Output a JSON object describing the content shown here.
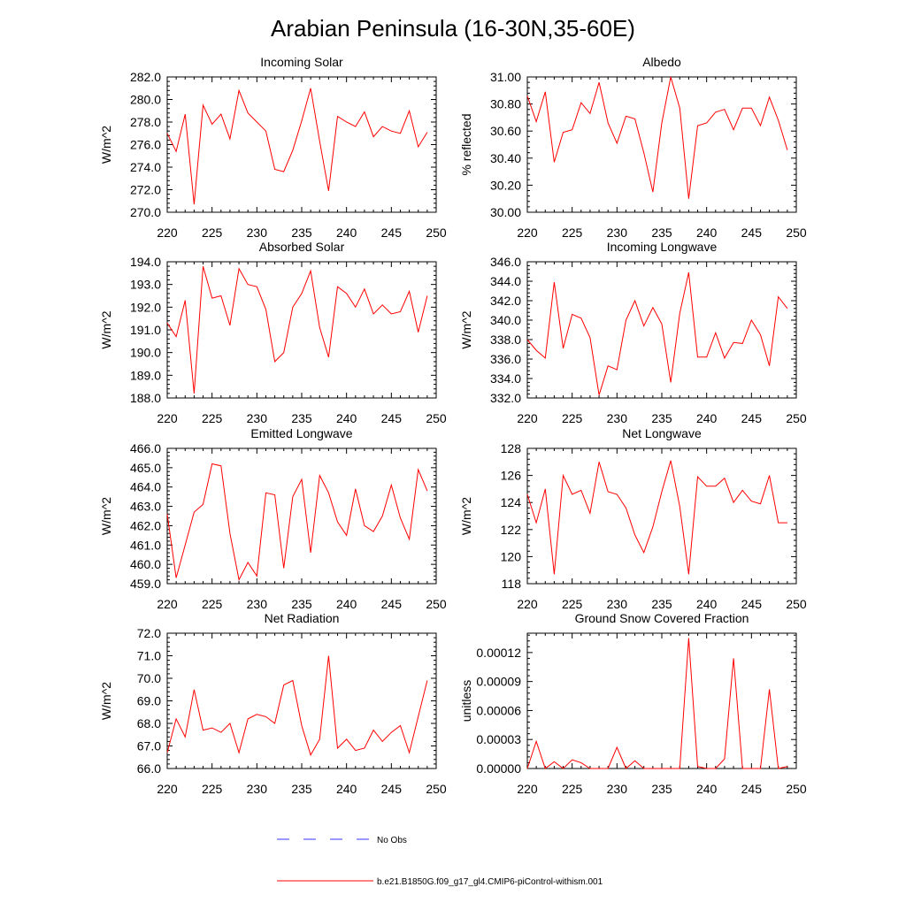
{
  "title": "Arabian Peninsula (16-30N,35-60E)",
  "legend": {
    "obs_label": "No Obs",
    "model_label": "b.e21.B1850G.f09_g17_gl4.CMIP6-piControl-withism.001",
    "obs_color": "#0000ff",
    "model_color": "#ff0000"
  },
  "chart_data": [
    {
      "type": "line",
      "title": "Incoming Solar",
      "xlabel": "",
      "ylabel": "W/m^2",
      "xlim": [
        220,
        250
      ],
      "ylim": [
        270,
        282
      ],
      "xticks": [
        220,
        225,
        230,
        235,
        240,
        245,
        250
      ],
      "yticks": [
        "270.0",
        "272.0",
        "274.0",
        "276.0",
        "278.0",
        "280.0",
        "282.0"
      ],
      "series": [
        {
          "x": [
            220,
            221,
            222,
            223,
            224,
            225,
            226,
            227,
            228,
            229,
            230,
            231,
            232,
            233,
            234,
            235,
            236,
            237,
            238,
            239,
            240,
            241,
            242,
            243,
            244,
            245,
            246,
            247,
            248,
            249
          ],
          "values": [
            277.0,
            275.4,
            278.7,
            270.7,
            279.5,
            277.8,
            278.7,
            276.5,
            280.8,
            278.8,
            278.0,
            277.2,
            273.8,
            273.6,
            275.5,
            278.1,
            281.0,
            276.3,
            271.9,
            278.5,
            278.0,
            277.6,
            278.9,
            276.7,
            277.6,
            277.2,
            277.0,
            279.0,
            275.8,
            277.1
          ]
        }
      ]
    },
    {
      "type": "line",
      "title": "Albedo",
      "xlabel": "",
      "ylabel": "% reflected",
      "xlim": [
        220,
        250
      ],
      "ylim": [
        30.0,
        31.0
      ],
      "xticks": [
        220,
        225,
        230,
        235,
        240,
        245,
        250
      ],
      "yticks": [
        "30.00",
        "30.20",
        "30.40",
        "30.60",
        "30.80",
        "31.00"
      ],
      "series": [
        {
          "x": [
            220,
            221,
            222,
            223,
            224,
            225,
            226,
            227,
            228,
            229,
            230,
            231,
            232,
            233,
            234,
            235,
            236,
            237,
            238,
            239,
            240,
            241,
            242,
            243,
            244,
            245,
            246,
            247,
            248,
            249
          ],
          "values": [
            30.86,
            30.67,
            30.89,
            30.37,
            30.59,
            30.61,
            30.81,
            30.73,
            30.96,
            30.66,
            30.51,
            30.71,
            30.69,
            30.44,
            30.15,
            30.66,
            31.0,
            30.77,
            30.1,
            30.64,
            30.66,
            30.74,
            30.76,
            30.61,
            30.77,
            30.77,
            30.64,
            30.85,
            30.68,
            30.46
          ]
        }
      ]
    },
    {
      "type": "line",
      "title": "Absorbed Solar",
      "xlabel": "",
      "ylabel": "W/m^2",
      "xlim": [
        220,
        250
      ],
      "ylim": [
        188,
        194
      ],
      "xticks": [
        220,
        225,
        230,
        235,
        240,
        245,
        250
      ],
      "yticks": [
        "188.0",
        "189.0",
        "190.0",
        "191.0",
        "192.0",
        "193.0",
        "194.0"
      ],
      "series": [
        {
          "x": [
            220,
            221,
            222,
            223,
            224,
            225,
            226,
            227,
            228,
            229,
            230,
            231,
            232,
            233,
            234,
            235,
            236,
            237,
            238,
            239,
            240,
            241,
            242,
            243,
            244,
            245,
            246,
            247,
            248,
            249
          ],
          "values": [
            191.3,
            190.7,
            192.3,
            188.2,
            193.8,
            192.4,
            192.5,
            191.2,
            193.7,
            193.0,
            192.9,
            191.9,
            189.6,
            190.0,
            192.0,
            192.6,
            193.6,
            191.1,
            189.8,
            192.9,
            192.6,
            192.0,
            192.8,
            191.7,
            192.1,
            191.7,
            191.8,
            192.7,
            190.9,
            192.5
          ]
        }
      ]
    },
    {
      "type": "line",
      "title": "Incoming Longwave",
      "xlabel": "",
      "ylabel": "W/m^2",
      "xlim": [
        220,
        250
      ],
      "ylim": [
        332,
        346
      ],
      "xticks": [
        220,
        225,
        230,
        235,
        240,
        245,
        250
      ],
      "yticks": [
        "332.0",
        "334.0",
        "336.0",
        "338.0",
        "340.0",
        "342.0",
        "344.0",
        "346.0"
      ],
      "series": [
        {
          "x": [
            220,
            221,
            222,
            223,
            224,
            225,
            226,
            227,
            228,
            229,
            230,
            231,
            232,
            233,
            234,
            235,
            236,
            237,
            238,
            239,
            240,
            241,
            242,
            243,
            244,
            245,
            246,
            247,
            248,
            249
          ],
          "values": [
            338.0,
            336.9,
            336.1,
            343.9,
            337.1,
            340.6,
            340.2,
            338.2,
            332.3,
            335.3,
            334.9,
            340.0,
            342.0,
            339.4,
            341.3,
            339.6,
            333.6,
            340.7,
            344.9,
            336.2,
            336.2,
            338.7,
            336.1,
            337.7,
            337.6,
            340.0,
            338.5,
            335.3,
            342.4,
            341.2
          ]
        }
      ]
    },
    {
      "type": "line",
      "title": "Emitted Longwave",
      "xlabel": "",
      "ylabel": "W/m^2",
      "xlim": [
        220,
        250
      ],
      "ylim": [
        459,
        466
      ],
      "xticks": [
        220,
        225,
        230,
        235,
        240,
        245,
        250
      ],
      "yticks": [
        "459.0",
        "460.0",
        "461.0",
        "462.0",
        "463.0",
        "464.0",
        "465.0",
        "466.0"
      ],
      "series": [
        {
          "x": [
            220,
            221,
            222,
            223,
            224,
            225,
            226,
            227,
            228,
            229,
            230,
            231,
            232,
            233,
            234,
            235,
            236,
            237,
            238,
            239,
            240,
            241,
            242,
            243,
            244,
            245,
            246,
            247,
            248,
            249
          ],
          "values": [
            462.6,
            459.3,
            461.0,
            462.7,
            463.1,
            465.2,
            465.1,
            461.6,
            459.2,
            460.1,
            459.4,
            463.7,
            463.6,
            459.8,
            463.5,
            464.4,
            460.6,
            464.6,
            463.7,
            462.2,
            461.5,
            463.9,
            462.0,
            461.7,
            462.5,
            464.1,
            462.4,
            461.3,
            464.9,
            463.8
          ]
        }
      ]
    },
    {
      "type": "line",
      "title": "Net Longwave",
      "xlabel": "",
      "ylabel": "W/m^2",
      "xlim": [
        220,
        250
      ],
      "ylim": [
        118,
        128
      ],
      "xticks": [
        220,
        225,
        230,
        235,
        240,
        245,
        250
      ],
      "yticks": [
        "118",
        "120",
        "122",
        "124",
        "126",
        "128"
      ],
      "series": [
        {
          "x": [
            220,
            221,
            222,
            223,
            224,
            225,
            226,
            227,
            228,
            229,
            230,
            231,
            232,
            233,
            234,
            235,
            236,
            237,
            238,
            239,
            240,
            241,
            242,
            243,
            244,
            245,
            246,
            247,
            248,
            249
          ],
          "values": [
            124.6,
            122.5,
            125.0,
            118.7,
            126.0,
            124.6,
            124.9,
            123.2,
            127.0,
            124.8,
            124.6,
            123.6,
            121.6,
            120.3,
            122.2,
            124.8,
            127.1,
            123.7,
            118.7,
            125.9,
            125.2,
            125.2,
            125.8,
            124.0,
            124.9,
            124.1,
            123.9,
            126.0,
            122.5,
            122.5
          ]
        }
      ]
    },
    {
      "type": "line",
      "title": "Net Radiation",
      "xlabel": "",
      "ylabel": "W/m^2",
      "xlim": [
        220,
        250
      ],
      "ylim": [
        66,
        72
      ],
      "xticks": [
        220,
        225,
        230,
        235,
        240,
        245,
        250
      ],
      "yticks": [
        "66.0",
        "67.0",
        "68.0",
        "69.0",
        "70.0",
        "71.0",
        "72.0"
      ],
      "series": [
        {
          "x": [
            220,
            221,
            222,
            223,
            224,
            225,
            226,
            227,
            228,
            229,
            230,
            231,
            232,
            233,
            234,
            235,
            236,
            237,
            238,
            239,
            240,
            241,
            242,
            243,
            244,
            245,
            246,
            247,
            248,
            249
          ],
          "values": [
            66.7,
            68.2,
            67.4,
            69.5,
            67.7,
            67.8,
            67.6,
            68.0,
            66.7,
            68.2,
            68.4,
            68.3,
            68.0,
            69.7,
            69.9,
            67.9,
            66.6,
            67.3,
            71.0,
            66.9,
            67.3,
            66.8,
            66.9,
            67.7,
            67.2,
            67.6,
            67.9,
            66.7,
            68.3,
            69.9
          ]
        }
      ]
    },
    {
      "type": "line",
      "title": "Ground Snow Covered Fraction",
      "xlabel": "",
      "ylabel": "unitless",
      "xlim": [
        220,
        250
      ],
      "ylim": [
        0,
        0.00014
      ],
      "xticks": [
        220,
        225,
        230,
        235,
        240,
        245,
        250
      ],
      "yticks": [
        "0.00000",
        "0.00003",
        "0.00006",
        "0.00009",
        "0.00012"
      ],
      "series": [
        {
          "x": [
            220,
            221,
            222,
            223,
            224,
            225,
            226,
            227,
            228,
            229,
            230,
            231,
            232,
            233,
            234,
            235,
            236,
            237,
            238,
            239,
            240,
            241,
            242,
            243,
            244,
            245,
            246,
            247,
            248,
            249
          ],
          "values": [
            0.0,
            2.8e-05,
            0.0,
            7e-06,
            0.0,
            9e-06,
            6e-06,
            0.0,
            0.0,
            0.0,
            2.2e-05,
            0.0,
            8e-06,
            0.0,
            0.0,
            0.0,
            0.0,
            0.0,
            0.000135,
            2e-06,
            0.0,
            0.0,
            1e-05,
            0.000114,
            0.0,
            0.0,
            0.0,
            8.2e-05,
            0.0,
            2e-06
          ]
        }
      ]
    }
  ]
}
